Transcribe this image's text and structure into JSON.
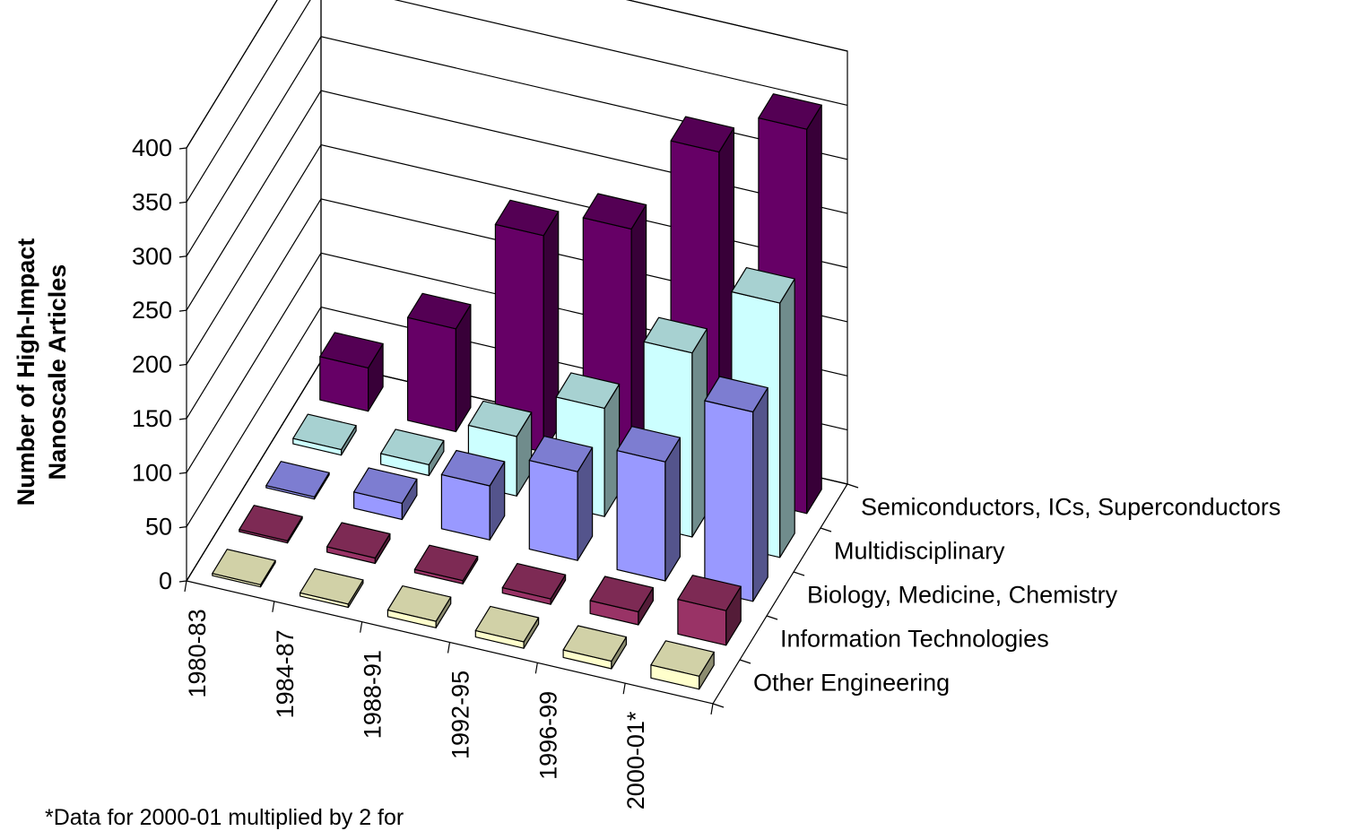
{
  "chart_data": {
    "type": "bar",
    "chart_style": "3d-column",
    "ylabel": [
      "Number of High-Impact",
      "Nanoscale Articles"
    ],
    "ylim": [
      0,
      400
    ],
    "yticks": [
      "0",
      "50",
      "100",
      "150",
      "200",
      "250",
      "300",
      "350",
      "400"
    ],
    "categories": [
      "1980-83",
      "1984-87",
      "1988-91",
      "1992-95",
      "1996-99",
      "2000-01*"
    ],
    "series": [
      {
        "name": "Other Engineering",
        "values": [
          2,
          3,
          6,
          6,
          7,
          12
        ],
        "color": "#ffffcc"
      },
      {
        "name": "Information Technologies",
        "values": [
          2,
          5,
          3,
          5,
          12,
          32
        ],
        "color": "#993366"
      },
      {
        "name": "Biology, Medicine, Chemistry",
        "values": [
          2,
          15,
          50,
          82,
          110,
          175
        ],
        "color": "#9999ff"
      },
      {
        "name": "Multidisciplinary",
        "values": [
          5,
          10,
          55,
          100,
          170,
          235
        ],
        "color": "#ccffff"
      },
      {
        "name": "Semiconductors, ICs, Superconductors",
        "values": [
          40,
          95,
          200,
          225,
          315,
          355
        ],
        "color": "#660066"
      }
    ],
    "grid": true,
    "footnote": "*Data for 2000-01 multiplied by 2 for"
  }
}
